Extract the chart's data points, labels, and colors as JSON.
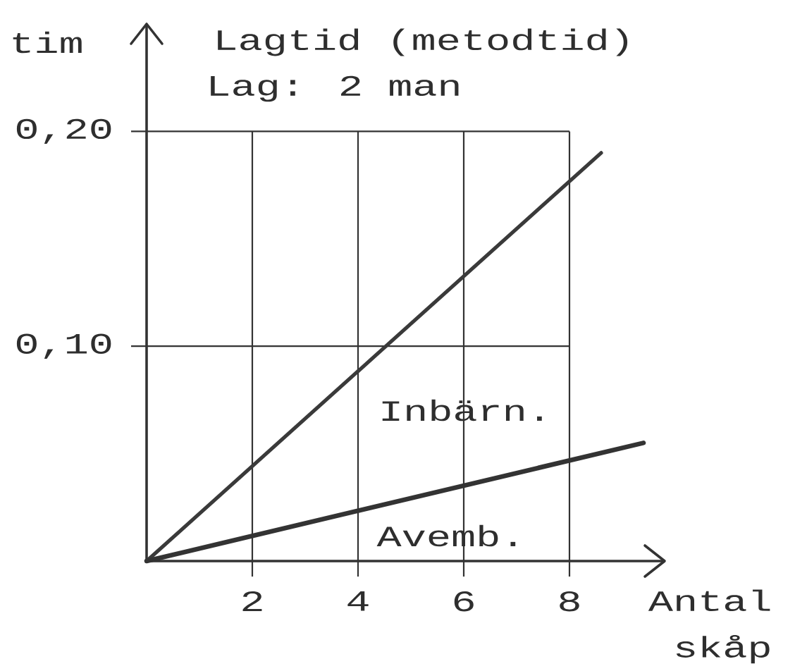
{
  "chart_data": {
    "type": "line",
    "title": "Lagtid (metodtid)",
    "subtitle": "Lag: 2 man",
    "xlabel": "Antal skåp",
    "ylabel": "tim",
    "series": [
      {
        "x": [
          0,
          8.6
        ],
        "values": [
          0,
          0.19
        ],
        "color": "#3a3a3a"
      },
      {
        "x": [
          0,
          9.4
        ],
        "values": [
          0,
          0.055
        ],
        "color": "#333333"
      }
    ],
    "annotations": [
      "Inbärn.",
      "Avemb."
    ],
    "xlim": [
      0,
      9.8
    ],
    "ylim": [
      0,
      0.25
    ],
    "xticks": [
      2,
      4,
      6,
      8
    ],
    "yticks": [
      {
        "value": 0.1,
        "label": "0,10"
      },
      {
        "value": 0.2,
        "label": "0,20"
      }
    ],
    "grid": true
  }
}
